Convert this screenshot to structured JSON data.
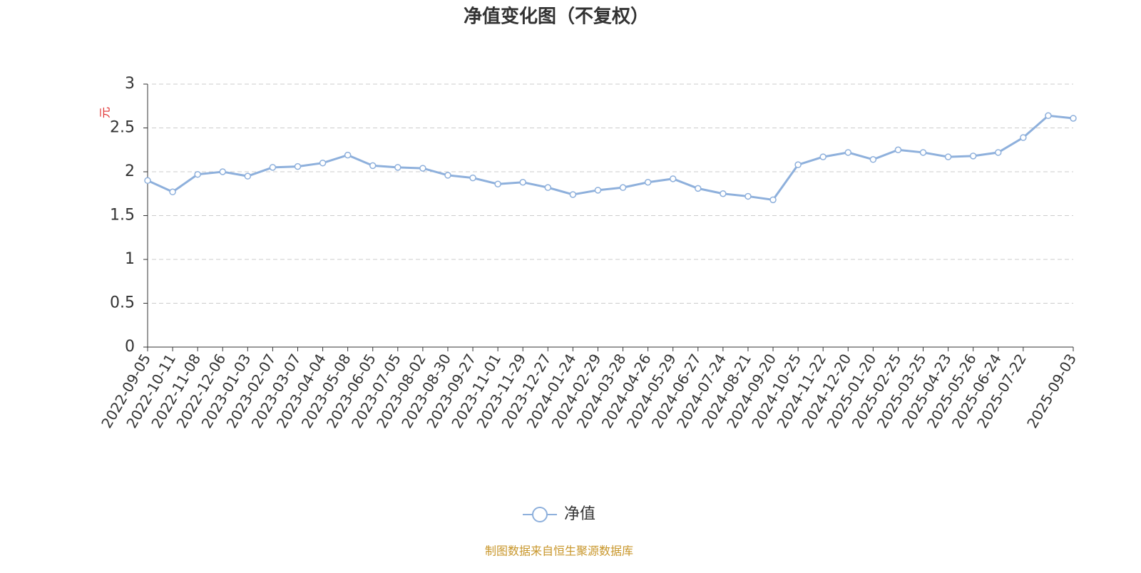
{
  "chart_data": {
    "type": "line",
    "title": "净值变化图（不复权）",
    "y_unit": "元",
    "categories": [
      "2022-09-05",
      "2022-10-11",
      "2022-11-08",
      "2022-12-06",
      "2023-01-03",
      "2023-02-07",
      "2023-03-07",
      "2023-04-04",
      "2023-05-08",
      "2023-06-05",
      "2023-07-05",
      "2023-08-02",
      "2023-08-30",
      "2023-09-27",
      "2023-11-01",
      "2023-11-29",
      "2023-12-27",
      "2024-01-24",
      "2024-02-29",
      "2024-03-28",
      "2024-04-26",
      "2024-05-29",
      "2024-06-27",
      "2024-07-24",
      "2024-08-21",
      "2024-09-20",
      "2024-10-25",
      "2024-11-22",
      "2024-12-20",
      "2025-01-20",
      "2025-02-25",
      "2025-03-25",
      "2025-04-23",
      "2025-05-26",
      "2025-06-24",
      "2025-07-22",
      null,
      "2025-09-03"
    ],
    "series": [
      {
        "name": "净值",
        "color": "#8eb0dc",
        "values": [
          1.9,
          1.77,
          1.97,
          2.0,
          1.95,
          2.05,
          2.06,
          2.1,
          2.19,
          2.07,
          2.05,
          2.04,
          1.96,
          1.93,
          1.86,
          1.88,
          1.82,
          1.74,
          1.79,
          1.82,
          1.88,
          1.92,
          1.81,
          1.75,
          1.72,
          1.68,
          2.08,
          2.17,
          2.22,
          2.14,
          2.25,
          2.22,
          2.17,
          2.18,
          2.22,
          2.39,
          2.64,
          2.61
        ]
      }
    ],
    "ylim": [
      0,
      3
    ],
    "yticks": [
      0,
      0.5,
      1,
      1.5,
      2,
      2.5,
      3
    ],
    "grid": true,
    "source": "制图数据来自恒生聚源数据库"
  }
}
